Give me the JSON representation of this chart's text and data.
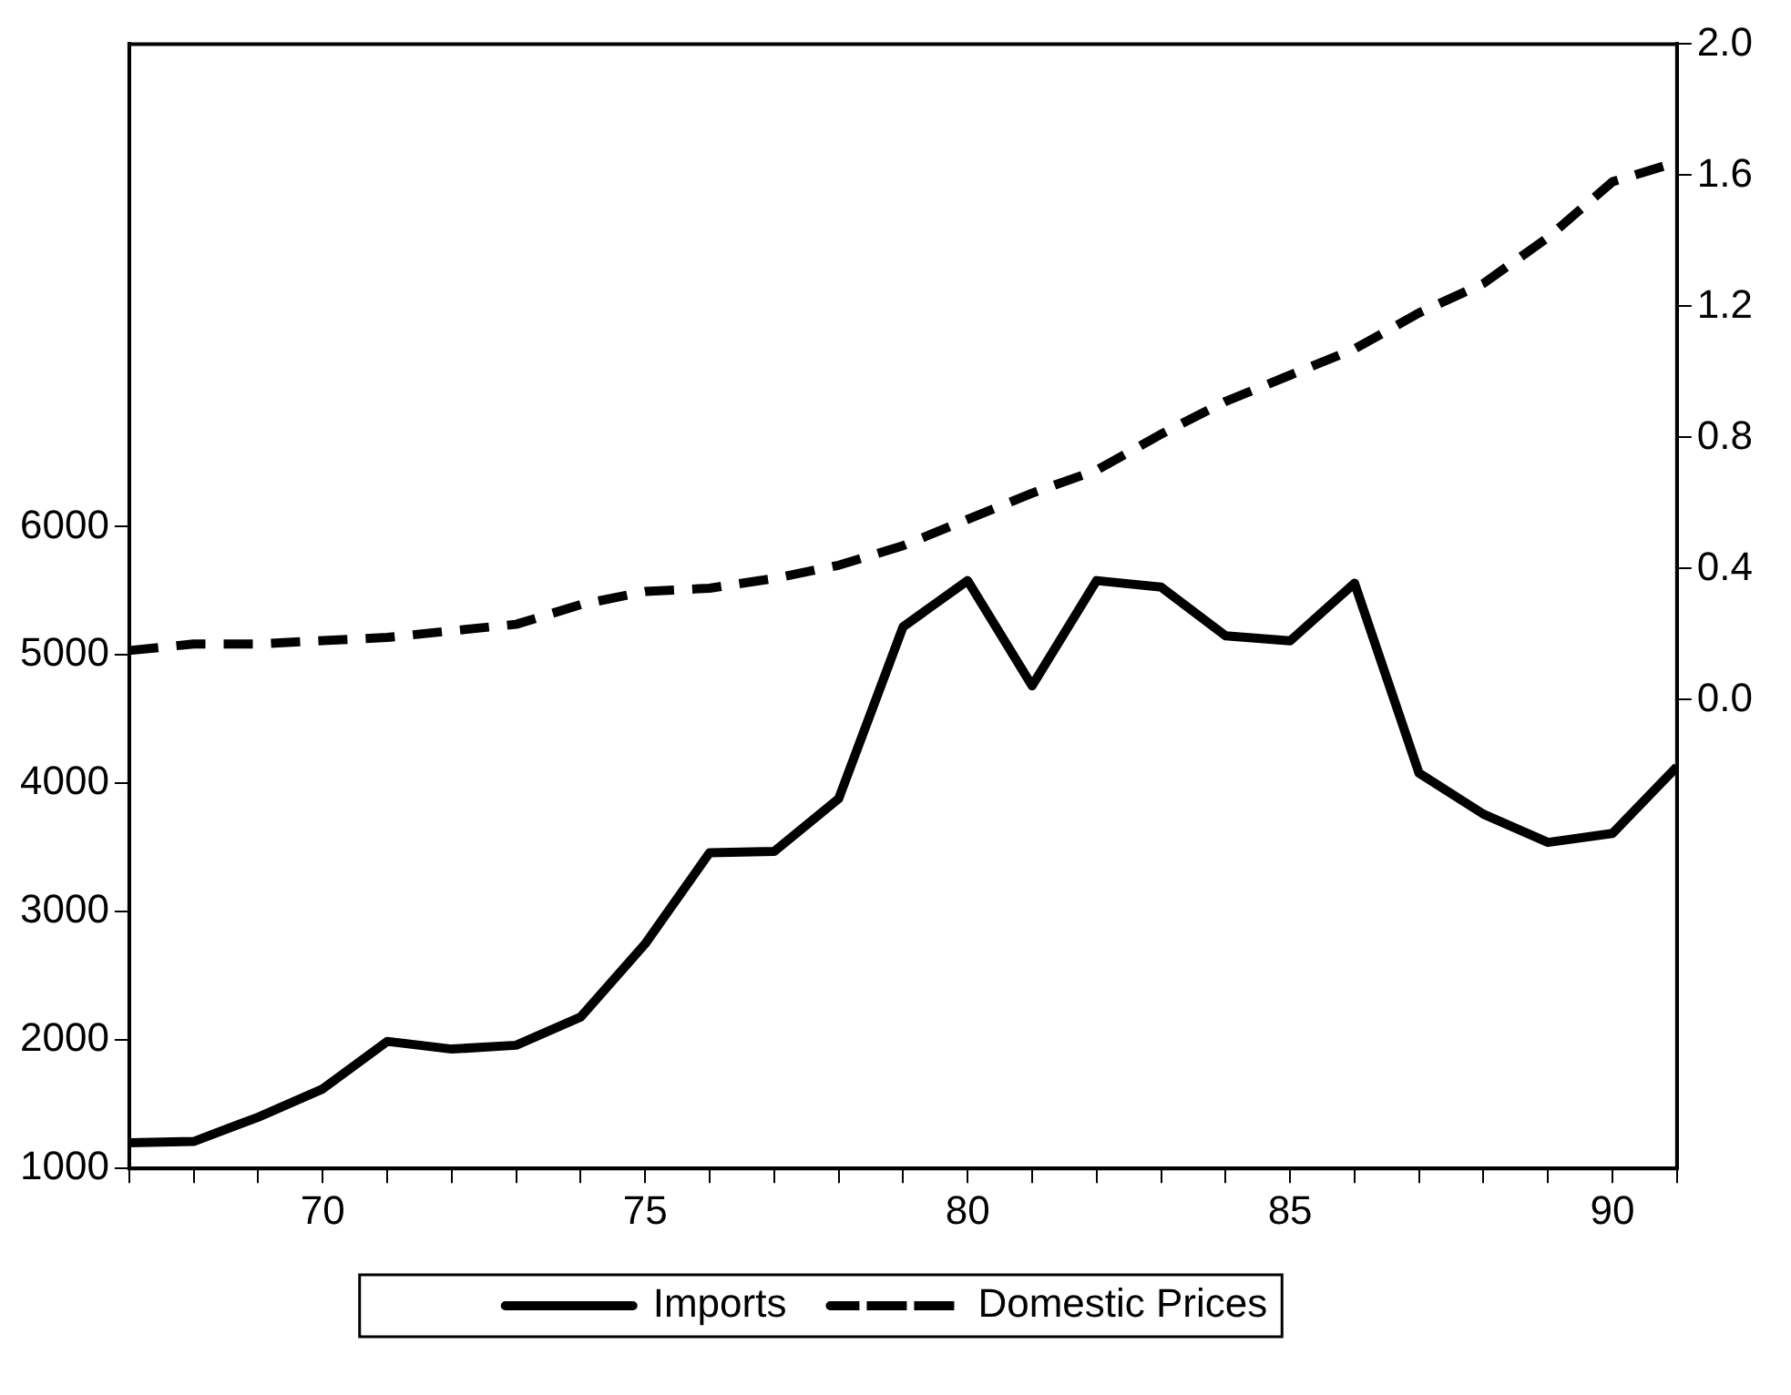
{
  "chart_data": {
    "type": "line",
    "x": [
      67,
      68,
      69,
      70,
      71,
      72,
      73,
      74,
      75,
      76,
      77,
      78,
      79,
      80,
      81,
      82,
      83,
      84,
      85,
      86,
      87,
      88,
      89,
      90,
      91
    ],
    "series": [
      {
        "name": "Imports",
        "color": "#000000",
        "line_style": "solid",
        "values": [
          1200,
          1210,
          1400,
          1620,
          1990,
          1930,
          1960,
          2180,
          2750,
          3460,
          3470,
          3880,
          5220,
          5580,
          4760,
          5580,
          5530,
          5150,
          5110,
          5560,
          4080,
          3760,
          3540,
          3610,
          4130
        ]
      },
      {
        "name": "Domestic Prices",
        "color": "#000000",
        "line_style": "dashed",
        "axis": "y2",
        "values": [
          0.15,
          0.17,
          0.17,
          0.18,
          0.19,
          0.21,
          0.23,
          0.29,
          0.33,
          0.34,
          0.37,
          0.41,
          0.47,
          0.55,
          0.63,
          0.7,
          0.81,
          0.91,
          0.99,
          1.07,
          1.18,
          1.27,
          1.41,
          1.58,
          1.64
        ]
      }
    ],
    "xlim": [
      67,
      91
    ],
    "xticks": [
      {
        "value": 67,
        "label": null
      },
      {
        "value": 68,
        "label": null
      },
      {
        "value": 69,
        "label": null
      },
      70,
      {
        "value": 71,
        "label": null
      },
      {
        "value": 72,
        "label": null
      },
      {
        "value": 73,
        "label": null
      },
      {
        "value": 74,
        "label": null
      },
      75,
      {
        "value": 76,
        "label": null
      },
      {
        "value": 77,
        "label": null
      },
      {
        "value": 78,
        "label": null
      },
      {
        "value": 79,
        "label": null
      },
      80,
      {
        "value": 81,
        "label": null
      },
      {
        "value": 82,
        "label": null
      },
      {
        "value": 83,
        "label": null
      },
      {
        "value": 84,
        "label": null
      },
      85,
      {
        "value": 86,
        "label": null
      },
      {
        "value": 87,
        "label": null
      },
      {
        "value": 88,
        "label": null
      },
      {
        "value": 89,
        "label": null
      },
      90,
      {
        "value": 91,
        "label": null
      }
    ],
    "ylim": [
      1000,
      9760
    ],
    "yticks": [
      1000,
      2000,
      3000,
      4000,
      5000,
      6000
    ],
    "y2lim": [
      -1.43,
      2.0
    ],
    "y2ticks": [
      {
        "value": 0,
        "label": "0.0"
      },
      0.4,
      0.8,
      1.2,
      1.6,
      {
        "value": 2,
        "label": "2.0"
      }
    ],
    "grid": false,
    "legend": "bottom",
    "marker": "none"
  }
}
